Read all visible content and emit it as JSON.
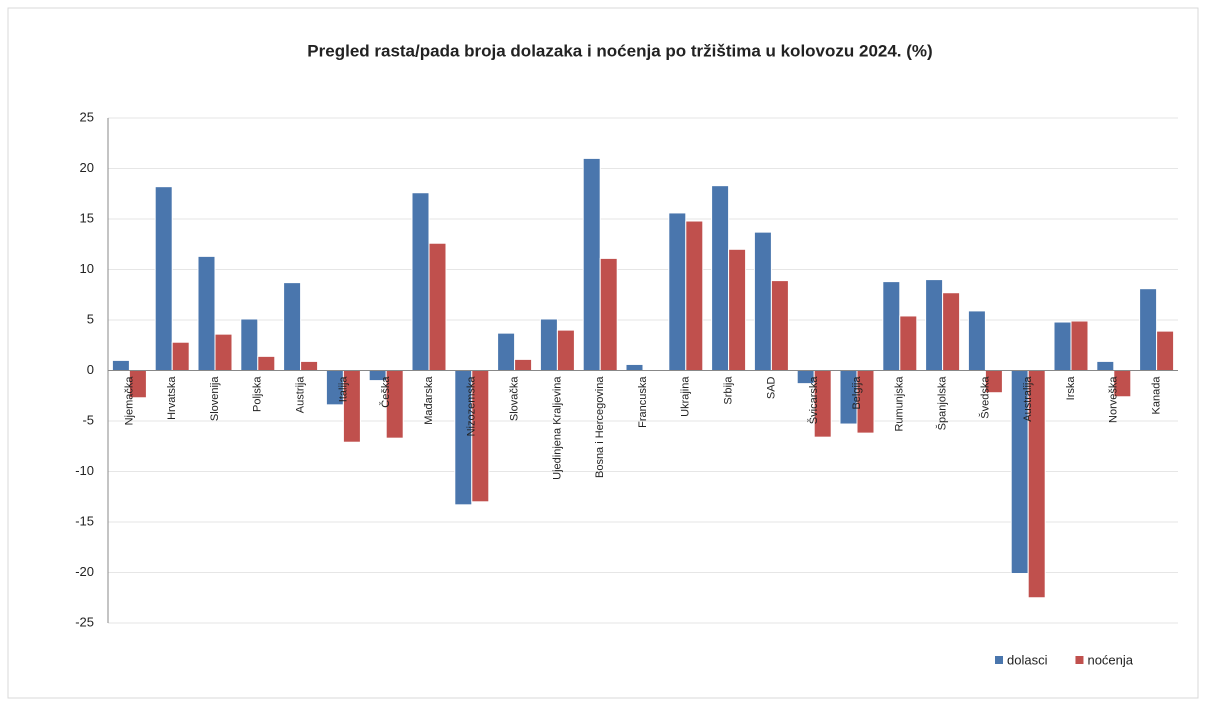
{
  "chart_data": {
    "type": "bar",
    "title": "Pregled rasta/pada broja dolazaka i noćenja po tržištima u kolovozu 2024. (%)",
    "categories": [
      "Njemačka",
      "Hrvatska",
      "Slovenija",
      "Poljska",
      "Austrija",
      "Italija",
      "Češka",
      "Mađarska",
      "Nizozemska",
      "Slovačka",
      "Ujedinjena Kraljevina",
      "Bosna i Hercegovina",
      "Francuska",
      "Ukrajina",
      "Srbija",
      "SAD",
      "Švicarska",
      "Belgija",
      "Rumunjska",
      "Španjolska",
      "Švedska",
      "Australija",
      "Irska",
      "Norveška",
      "Kanada"
    ],
    "series": [
      {
        "name": "dolasci",
        "color": "#4a76ad",
        "values": [
          1.0,
          18.2,
          11.3,
          5.1,
          8.7,
          -3.4,
          -1.0,
          17.6,
          -13.3,
          3.7,
          5.1,
          21.0,
          0.6,
          15.6,
          18.3,
          13.7,
          -1.3,
          -5.3,
          8.8,
          9.0,
          5.9,
          -20.1,
          4.8,
          0.9,
          8.1
        ]
      },
      {
        "name": "noćenja",
        "color": "#c0504d",
        "values": [
          -2.7,
          2.8,
          3.6,
          1.4,
          0.9,
          -7.1,
          -6.7,
          12.6,
          -13.0,
          1.1,
          4.0,
          11.1,
          0.0,
          14.8,
          12.0,
          8.9,
          -6.6,
          -6.2,
          5.4,
          7.7,
          -2.2,
          -22.5,
          4.9,
          -2.6,
          3.9
        ]
      }
    ],
    "ylim": [
      -25,
      25
    ],
    "yticks": [
      -25,
      -20,
      -15,
      -10,
      -5,
      0,
      5,
      10,
      15,
      20,
      25
    ],
    "grid": true,
    "legend": "bottom-right"
  }
}
